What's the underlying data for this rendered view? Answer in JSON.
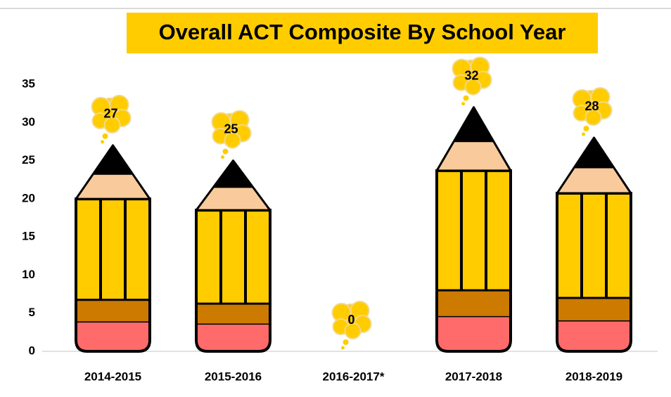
{
  "chart_data": {
    "type": "pencil-bar",
    "title": "Overall ACT Composite By School Year",
    "categories": [
      "2014-2015",
      "2015-2016",
      "2016-2017*",
      "2017-2018",
      "2018-2019"
    ],
    "values": [
      27,
      25,
      0,
      32,
      28
    ],
    "color": "#ffcc00",
    "ylim": [
      0,
      35
    ],
    "yticks": [
      0,
      5,
      10,
      15,
      20,
      25,
      30,
      35
    ],
    "grid": false
  }
}
